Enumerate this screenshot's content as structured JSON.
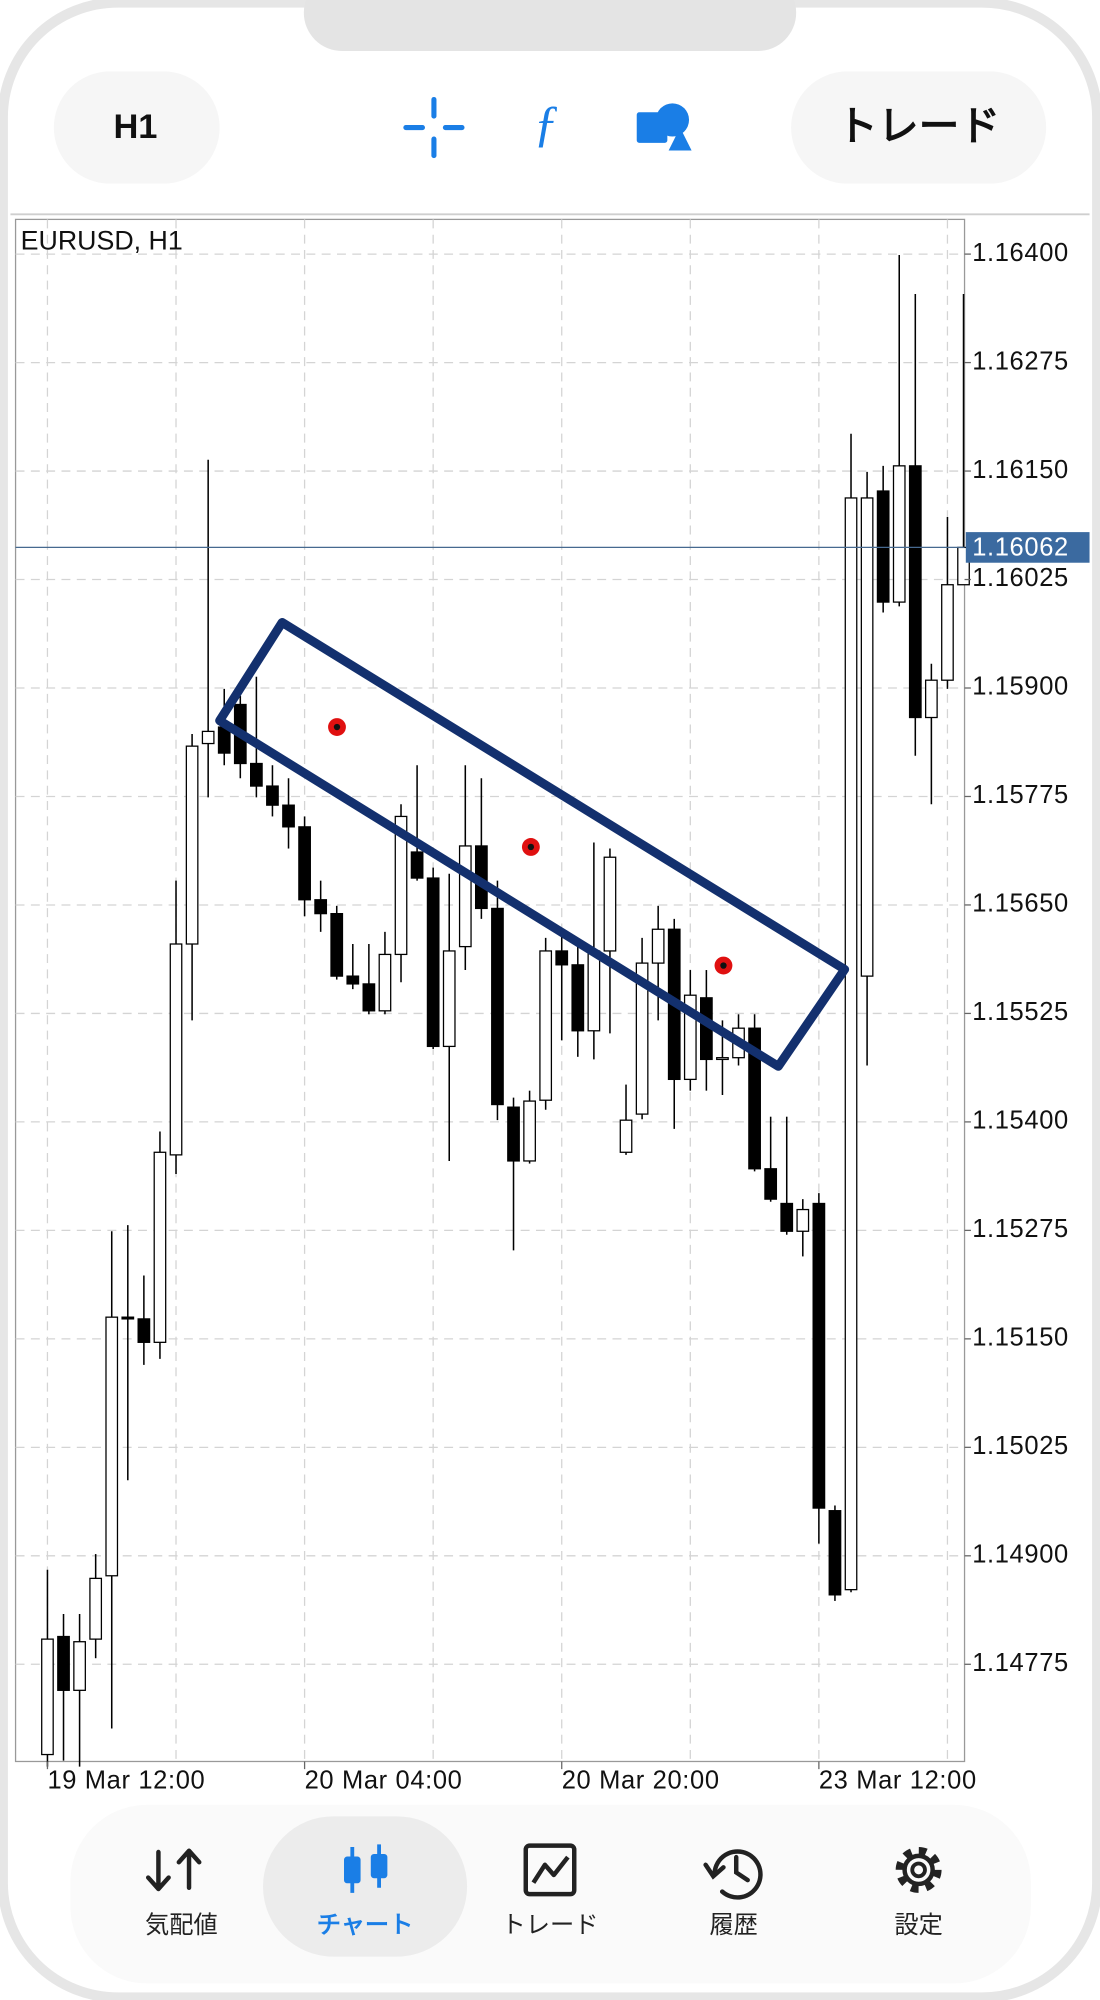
{
  "toolbar": {
    "timeframe": "H1",
    "trade_button": "トレード"
  },
  "chart_data": {
    "type": "candlestick",
    "title": "EURUSD, H1",
    "categories": [
      "19 Mar 12:00",
      null,
      null,
      null,
      null,
      null,
      null,
      null,
      null,
      null,
      null,
      null,
      null,
      null,
      null,
      null,
      "20 Mar 04:00",
      null,
      null,
      null,
      null,
      null,
      null,
      null,
      null,
      null,
      null,
      null,
      null,
      null,
      null,
      null,
      "20 Mar 20:00",
      null,
      null,
      null,
      null,
      null,
      null,
      null,
      null,
      null,
      null,
      null,
      null,
      null,
      null,
      null,
      "23 Mar 12:00",
      null,
      null,
      null,
      null,
      null,
      null,
      null,
      null,
      null
    ],
    "open": [
      1.14671,
      1.14807,
      1.14745,
      1.14804,
      1.14877,
      1.15175,
      1.15173,
      1.15146,
      1.15362,
      1.15605,
      1.15836,
      1.15855,
      1.15881,
      1.15813,
      1.15787,
      1.15765,
      1.1574,
      1.15656,
      1.1564,
      1.15568,
      1.15559,
      1.15528,
      1.15593,
      1.15711,
      1.15681,
      1.15487,
      1.15602,
      1.15718,
      1.15646,
      1.15417,
      1.15355,
      1.15425,
      1.15597,
      1.15581,
      1.15505,
      1.15597,
      1.15365,
      1.15409,
      1.15583,
      1.15622,
      1.15449,
      1.15543,
      1.15472,
      1.15474,
      1.15508,
      1.15346,
      1.15306,
      1.15274,
      1.15306,
      1.14952,
      1.14861,
      1.15568,
      1.16127,
      1.15999,
      1.16156,
      1.15866,
      1.15909,
      1.16019
    ],
    "high": [
      1.14884,
      1.14833,
      1.14833,
      1.14902,
      1.15274,
      1.15281,
      1.15223,
      1.15389,
      1.15678,
      1.15847,
      1.16163,
      1.15899,
      1.15891,
      1.15913,
      1.15811,
      1.15796,
      1.15752,
      1.15678,
      1.15649,
      1.15605,
      1.15605,
      1.15619,
      1.15766,
      1.15811,
      1.15693,
      1.15686,
      1.15811,
      1.15796,
      1.15678,
      1.15428,
      1.15436,
      1.15612,
      1.15619,
      1.15605,
      1.15722,
      1.15715,
      1.15443,
      1.15612,
      1.15649,
      1.15634,
      1.15575,
      1.15575,
      1.15517,
      1.15524,
      1.15524,
      1.15406,
      1.15406,
      1.15311,
      1.15318,
      1.14958,
      1.16193,
      1.16149,
      1.16156,
      1.16399,
      1.16354,
      1.15928,
      1.16097,
      1.16354
    ],
    "low": [
      1.14657,
      1.14664,
      1.14657,
      1.14782,
      1.14701,
      1.14987,
      1.1512,
      1.15127,
      1.1534,
      1.15517,
      1.15774,
      1.15811,
      1.15796,
      1.15774,
      1.15752,
      1.15715,
      1.15637,
      1.15619,
      1.15564,
      1.15553,
      1.15524,
      1.15524,
      1.15561,
      1.15678,
      1.15484,
      1.15355,
      1.15575,
      1.15634,
      1.15402,
      1.15252,
      1.15352,
      1.15414,
      1.15494,
      1.15475,
      1.15472,
      1.15502,
      1.15362,
      1.15403,
      1.15517,
      1.15392,
      1.15436,
      1.15436,
      1.15431,
      1.15465,
      1.15343,
      1.15308,
      1.1527,
      1.15245,
      1.14914,
      1.14848,
      1.14858,
      1.15465,
      1.15987,
      1.15994,
      1.15822,
      1.15766,
      1.15899,
      1.16031
    ],
    "close": [
      1.14804,
      1.14745,
      1.14801,
      1.14874,
      1.15175,
      1.15173,
      1.15146,
      1.15365,
      1.15605,
      1.15833,
      1.1585,
      1.15825,
      1.15813,
      1.15787,
      1.15765,
      1.1574,
      1.15656,
      1.1564,
      1.15568,
      1.15559,
      1.15528,
      1.15593,
      1.15752,
      1.15681,
      1.15487,
      1.15597,
      1.15718,
      1.15646,
      1.1542,
      1.15355,
      1.15424,
      1.15597,
      1.15581,
      1.15505,
      1.15597,
      1.15705,
      1.15402,
      1.15583,
      1.15622,
      1.15449,
      1.15546,
      1.15472,
      1.15474,
      1.15508,
      1.15346,
      1.15311,
      1.15274,
      1.15299,
      1.14955,
      1.14855,
      1.16119,
      1.16119,
      1.15999,
      1.16156,
      1.15866,
      1.15909,
      1.16019,
      1.16062
    ],
    "ylim": [
      1.14663,
      1.1644
    ],
    "yticks": [
      {
        "value": 1.164,
        "label": "1.16400"
      },
      {
        "value": 1.16275,
        "label": "1.16275"
      },
      {
        "value": 1.1615,
        "label": "1.16150"
      },
      {
        "value": 1.16025,
        "label": "1.16025"
      },
      {
        "value": 1.159,
        "label": "1.15900"
      },
      {
        "value": 1.15775,
        "label": "1.15775"
      },
      {
        "value": 1.1565,
        "label": "1.15650"
      },
      {
        "value": 1.15525,
        "label": "1.15525"
      },
      {
        "value": 1.154,
        "label": "1.15400"
      },
      {
        "value": 1.15275,
        "label": "1.15275"
      },
      {
        "value": 1.1515,
        "label": "1.15150"
      },
      {
        "value": 1.15025,
        "label": "1.15025"
      },
      {
        "value": 1.149,
        "label": "1.14900"
      },
      {
        "value": 1.14775,
        "label": "1.14775"
      }
    ],
    "current_price": 1.16062,
    "grid": true,
    "up_color": "#ffffff",
    "down_color": "#000000"
  },
  "nav": {
    "items": [
      "気配値",
      "チャート",
      "トレード",
      "履歴",
      "設定"
    ],
    "active": 1
  }
}
